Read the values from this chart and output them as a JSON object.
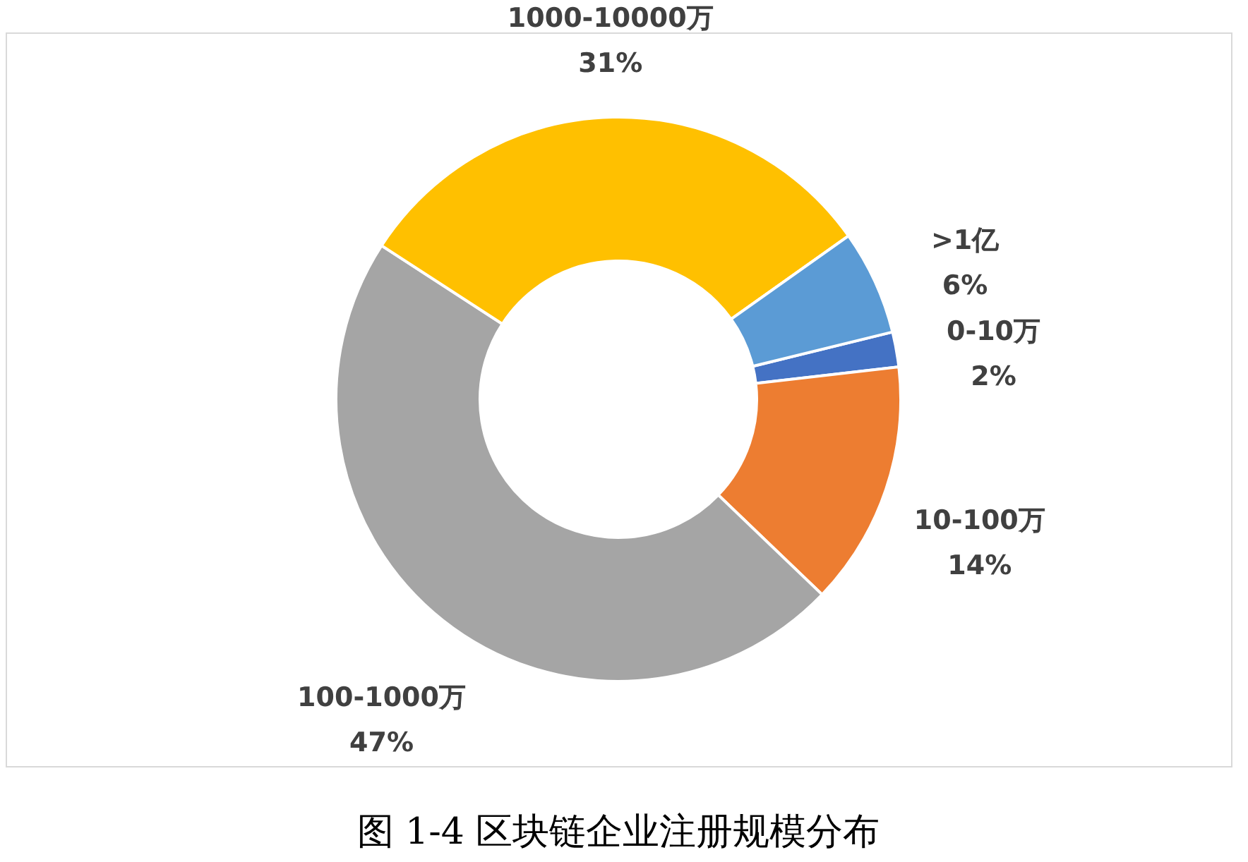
{
  "chart_data": {
    "type": "donut",
    "title": "图 1-4 区块链企业注册规模分布",
    "categories": [
      "0-10万",
      "10-100万",
      "100-1000万",
      "1000-10000万",
      ">1亿"
    ],
    "values": [
      2,
      14,
      47,
      31,
      6
    ],
    "value_labels": [
      "2%",
      "14%",
      "47%",
      "31%",
      "6%"
    ],
    "colors": [
      "#4472c4",
      "#ed7d31",
      "#a5a5a5",
      "#ffc000",
      "#5b9bd5"
    ],
    "legend": false
  }
}
